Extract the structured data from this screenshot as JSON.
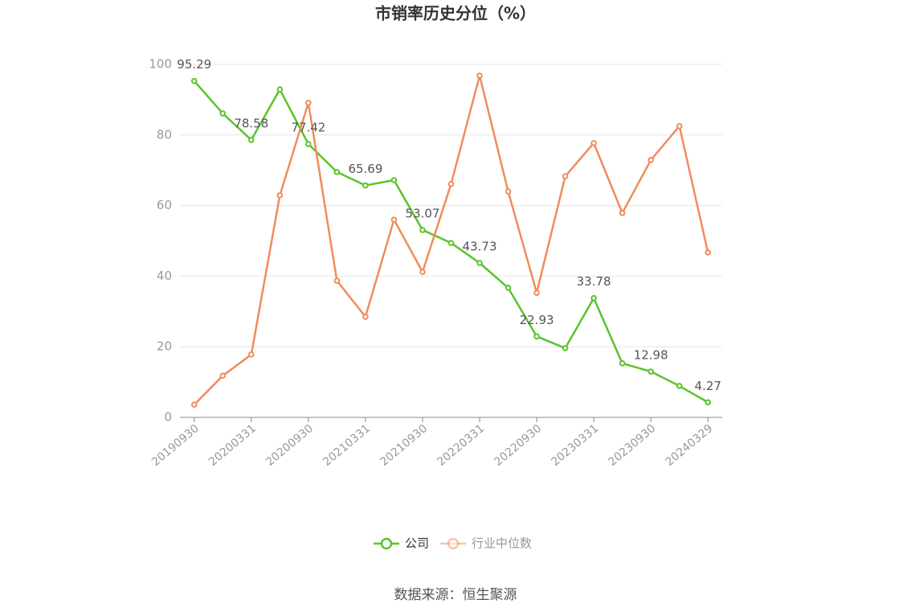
{
  "chart_data": {
    "type": "line",
    "title": "市销率历史分位（%）",
    "categories": [
      "20190930",
      null,
      "20200331",
      null,
      "20200930",
      null,
      "20210331",
      null,
      "20210930",
      null,
      "20220331",
      null,
      "20220930",
      null,
      "20230331",
      null,
      "20230930",
      null,
      "20240329"
    ],
    "series": [
      {
        "name": "公司",
        "color": "#5ac42a",
        "values": [
          95.29,
          86.1,
          78.58,
          92.9,
          77.42,
          69.5,
          65.69,
          67.2,
          53.07,
          49.4,
          43.73,
          36.7,
          22.93,
          19.6,
          33.78,
          15.3,
          12.98,
          8.9,
          4.27
        ]
      },
      {
        "name": "行业中位数",
        "color": "#f08c5a",
        "values": [
          3.6,
          11.8,
          17.8,
          62.9,
          89.1,
          38.7,
          28.5,
          56.0,
          41.2,
          66.1,
          96.8,
          64.0,
          35.3,
          68.3,
          77.7,
          57.9,
          72.9,
          82.5,
          46.7
        ]
      }
    ],
    "ylim": [
      0,
      100
    ],
    "yticks": [
      0,
      20,
      40,
      60,
      80,
      100
    ],
    "grid": true,
    "legend": "bottom",
    "source": "数据来源：恒生聚源"
  }
}
